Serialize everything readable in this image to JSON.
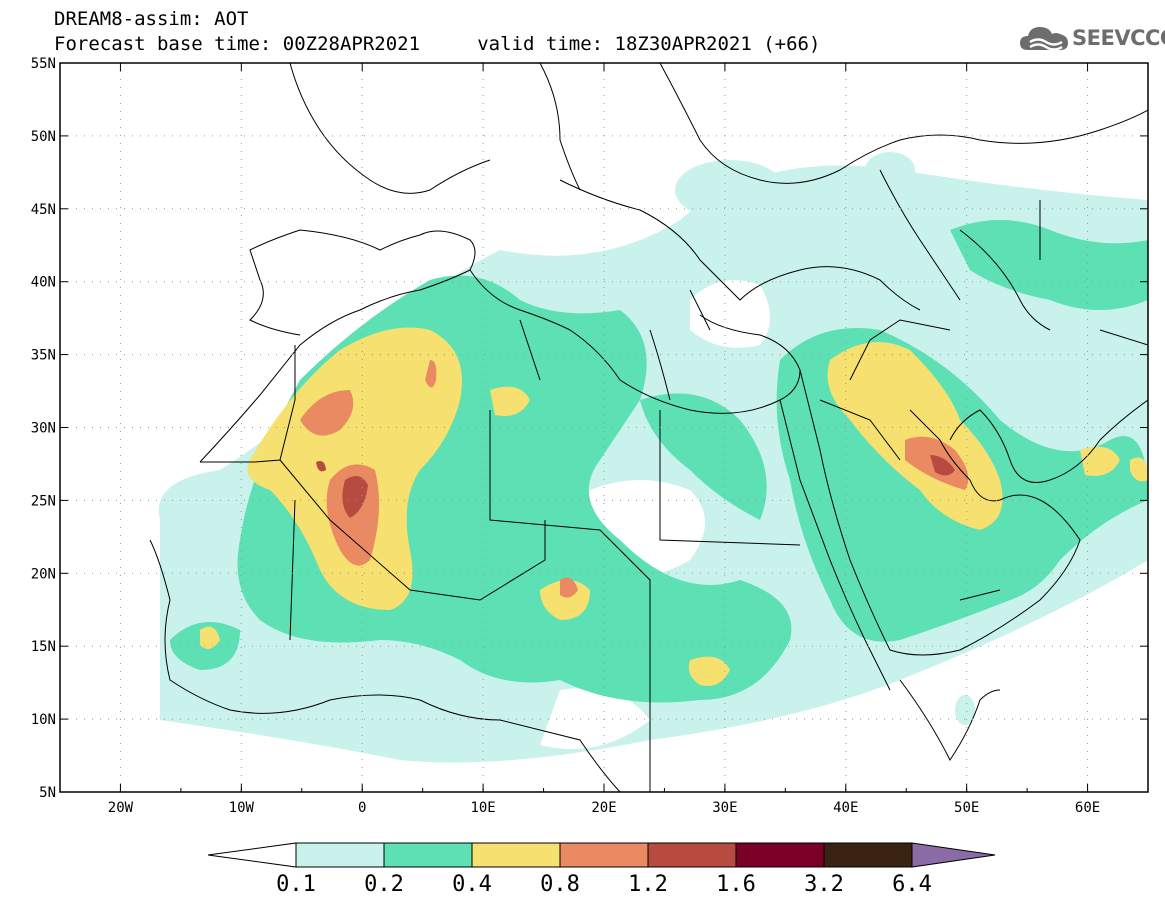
{
  "title": {
    "line1": "DREAM8-assim: AOT",
    "line2": "Forecast base time: 00Z28APR2021     valid time: 18Z30APR2021 (+66)"
  },
  "logo": {
    "text": "SEEVCCC",
    "icon": "cloud-icon"
  },
  "map": {
    "lon_range": [
      -25,
      65
    ],
    "lat_range": [
      5,
      55
    ],
    "lon_ticks": [
      "20W",
      "10W",
      "0",
      "10E",
      "20E",
      "30E",
      "40E",
      "50E",
      "60E"
    ],
    "lat_ticks": [
      "55N",
      "50N",
      "45N",
      "40N",
      "35N",
      "30N",
      "25N",
      "20N",
      "15N",
      "10N",
      "5N"
    ],
    "grid": "dotted"
  },
  "colorbar": {
    "labels": [
      "0.1",
      "0.2",
      "0.4",
      "0.8",
      "1.2",
      "1.6",
      "3.2",
      "6.4"
    ],
    "colors": [
      "#ffffff",
      "#c8f2eb",
      "#5de0b4",
      "#f5e070",
      "#e98a63",
      "#b74b3f",
      "#7a0026",
      "#3b2314",
      "#8b6ba6"
    ]
  }
}
